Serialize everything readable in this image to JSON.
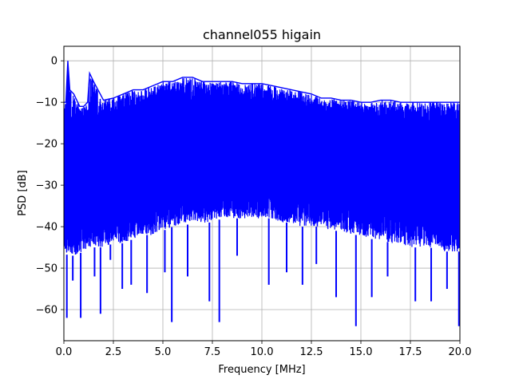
{
  "chart_data": {
    "type": "line",
    "title": "channel055 higain",
    "xlabel": "Frequency [MHz]",
    "ylabel": "PSD [dB]",
    "xlim": [
      0,
      20
    ],
    "ylim": [
      -67.5,
      3.5
    ],
    "xticks": [
      0.0,
      2.5,
      5.0,
      7.5,
      10.0,
      12.5,
      15.0,
      17.5,
      20.0
    ],
    "xtick_labels": [
      "0.0",
      "2.5",
      "5.0",
      "7.5",
      "10.0",
      "12.5",
      "15.0",
      "17.5",
      "20.0"
    ],
    "yticks": [
      0,
      -10,
      -20,
      -30,
      -40,
      -50,
      -60
    ],
    "ytick_labels": [
      "0",
      "−10",
      "−20",
      "−30",
      "−40",
      "−50",
      "−60"
    ],
    "grid": true,
    "series": [
      {
        "color": "#0000ff",
        "upper_envelope": {
          "x": [
            0.0,
            0.1,
            0.2,
            0.3,
            0.5,
            0.8,
            1.0,
            1.2,
            1.3,
            1.5,
            2.0,
            2.5,
            3.0,
            3.5,
            4.0,
            4.5,
            5.0,
            5.5,
            6.0,
            6.5,
            7.0,
            7.5,
            8.0,
            8.5,
            9.0,
            9.5,
            10.0,
            10.5,
            11.0,
            11.5,
            12.0,
            12.5,
            13.0,
            13.5,
            14.0,
            14.5,
            15.0,
            15.5,
            16.0,
            16.5,
            17.0,
            17.5,
            18.0,
            18.5,
            19.0,
            19.5,
            20.0
          ],
          "y": [
            -10,
            -10,
            0,
            -7,
            -8,
            -11,
            -11,
            -10,
            -3,
            -5,
            -9.5,
            -9,
            -8,
            -7,
            -7,
            -6,
            -5,
            -5,
            -4,
            -4,
            -5,
            -5,
            -5,
            -5,
            -5.5,
            -5.5,
            -5.5,
            -6,
            -6.5,
            -7,
            -7.5,
            -8,
            -9,
            -9,
            -9.5,
            -9.5,
            -10,
            -10,
            -9.5,
            -9.5,
            -10,
            -10,
            -10,
            -10,
            -10,
            -10,
            -10
          ]
        },
        "lower_envelope": {
          "x": [
            0.0,
            0.2,
            0.5,
            1.0,
            1.5,
            2.0,
            2.5,
            3.0,
            3.5,
            4.0,
            4.5,
            5.0,
            5.5,
            6.0,
            6.5,
            7.0,
            7.5,
            8.0,
            8.5,
            9.0,
            9.5,
            10.0,
            10.5,
            11.0,
            11.5,
            12.0,
            12.5,
            13.0,
            13.5,
            14.0,
            14.5,
            15.0,
            15.5,
            16.0,
            16.5,
            17.0,
            17.5,
            18.0,
            18.5,
            19.0,
            19.5,
            20.0
          ],
          "y": [
            -46,
            -47,
            -47,
            -46,
            -45,
            -45,
            -44,
            -44,
            -43,
            -42,
            -42,
            -41,
            -40,
            -40,
            -39,
            -39,
            -39,
            -38,
            -38,
            -38,
            -38,
            -38,
            -38,
            -39,
            -39,
            -40,
            -40,
            -40,
            -41,
            -41,
            -42,
            -42,
            -43,
            -43,
            -44,
            -44,
            -45,
            -45,
            -45,
            -46,
            -46,
            -46
          ]
        },
        "core_band": {
          "x": [
            0.0,
            2.5,
            5.0,
            7.5,
            10.0,
            12.5,
            15.0,
            17.5,
            20.0
          ],
          "upper": [
            -16,
            -14,
            -11,
            -10,
            -11,
            -12,
            -14,
            -15,
            -16
          ],
          "lower": [
            -40,
            -37,
            -33,
            -32,
            -32,
            -33,
            -35,
            -37,
            -40
          ]
        },
        "dips": [
          {
            "x": 0.15,
            "y": -62
          },
          {
            "x": 0.45,
            "y": -53
          },
          {
            "x": 0.85,
            "y": -62
          },
          {
            "x": 1.55,
            "y": -52
          },
          {
            "x": 1.85,
            "y": -61
          },
          {
            "x": 2.35,
            "y": -48
          },
          {
            "x": 2.95,
            "y": -55
          },
          {
            "x": 3.4,
            "y": -54
          },
          {
            "x": 4.2,
            "y": -56
          },
          {
            "x": 5.1,
            "y": -51
          },
          {
            "x": 5.45,
            "y": -63
          },
          {
            "x": 6.25,
            "y": -52
          },
          {
            "x": 7.35,
            "y": -58
          },
          {
            "x": 7.85,
            "y": -63
          },
          {
            "x": 8.75,
            "y": -47
          },
          {
            "x": 10.35,
            "y": -54
          },
          {
            "x": 11.25,
            "y": -51
          },
          {
            "x": 12.05,
            "y": -54
          },
          {
            "x": 12.75,
            "y": -49
          },
          {
            "x": 13.75,
            "y": -57
          },
          {
            "x": 14.75,
            "y": -64
          },
          {
            "x": 15.55,
            "y": -57
          },
          {
            "x": 16.35,
            "y": -52
          },
          {
            "x": 17.75,
            "y": -58
          },
          {
            "x": 18.55,
            "y": -58
          },
          {
            "x": 19.35,
            "y": -55
          },
          {
            "x": 19.95,
            "y": -64
          }
        ]
      }
    ]
  }
}
